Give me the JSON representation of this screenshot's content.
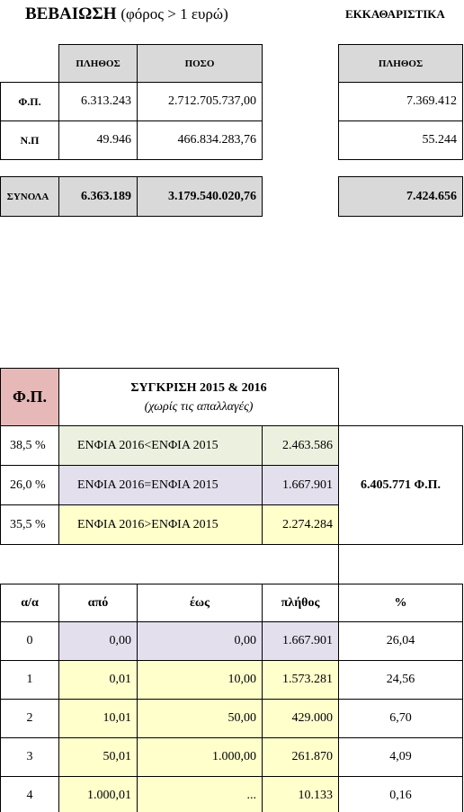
{
  "header": {
    "title": "ΒΕΒΑΙΩΣΗ",
    "subtitle": "(φόρος > 1 ευρώ)",
    "right_title": "ΕΚΚΑΘΑΡΙΣΤΙΚΑ"
  },
  "table1": {
    "columns": [
      "ΠΛΗΘΟΣ",
      "ΠΟΣΟ"
    ],
    "rows": [
      [
        "Φ.Π.",
        "6.313.243",
        "2.712.705.737,00"
      ],
      [
        "Ν.Π",
        "49.946",
        "466.834.283,76"
      ]
    ],
    "total": [
      "ΣΥΝΟΛΑ",
      "6.363.189",
      "3.179.540.020,76"
    ]
  },
  "table2": {
    "columns": [
      "ΠΛΗΘΟΣ"
    ],
    "rows": [
      [
        "7.369.412"
      ],
      [
        "55.244"
      ]
    ],
    "total": [
      "7.424.656"
    ]
  },
  "comparison": {
    "label": "Φ.Π.",
    "title": "ΣΥΓΚΡΙΣΗ 2015 & 2016",
    "subtitle": "(χωρίς τις απαλλαγές)",
    "rows": [
      [
        "38,5 %",
        "ΕΝΦΙΑ 2016<ΕΝΦΙΑ 2015",
        "2.463.586"
      ],
      [
        "26,0 %",
        "ΕΝΦΙΑ 2016=ΕΝΦΙΑ 2015",
        "1.667.901"
      ],
      [
        "35,5 %",
        "ΕΝΦΙΑ 2016>ΕΝΦΙΑ 2015",
        "2.274.284"
      ]
    ],
    "total": "6.405.771 Φ.Π."
  },
  "distribution": {
    "columns": [
      "α/α",
      "από",
      "έως",
      "πλήθος",
      "%"
    ],
    "rows": [
      [
        "0",
        "0,00",
        "0,00",
        "1.667.901",
        "26,04"
      ],
      [
        "1",
        "0,01",
        "10,00",
        "1.573.281",
        "24,56"
      ],
      [
        "2",
        "10,01",
        "50,00",
        "429.000",
        "6,70"
      ],
      [
        "3",
        "50,01",
        "1.000,00",
        "261.870",
        "4,09"
      ],
      [
        "4",
        "1.000,01",
        "...",
        "10.133",
        "0,16"
      ]
    ]
  }
}
